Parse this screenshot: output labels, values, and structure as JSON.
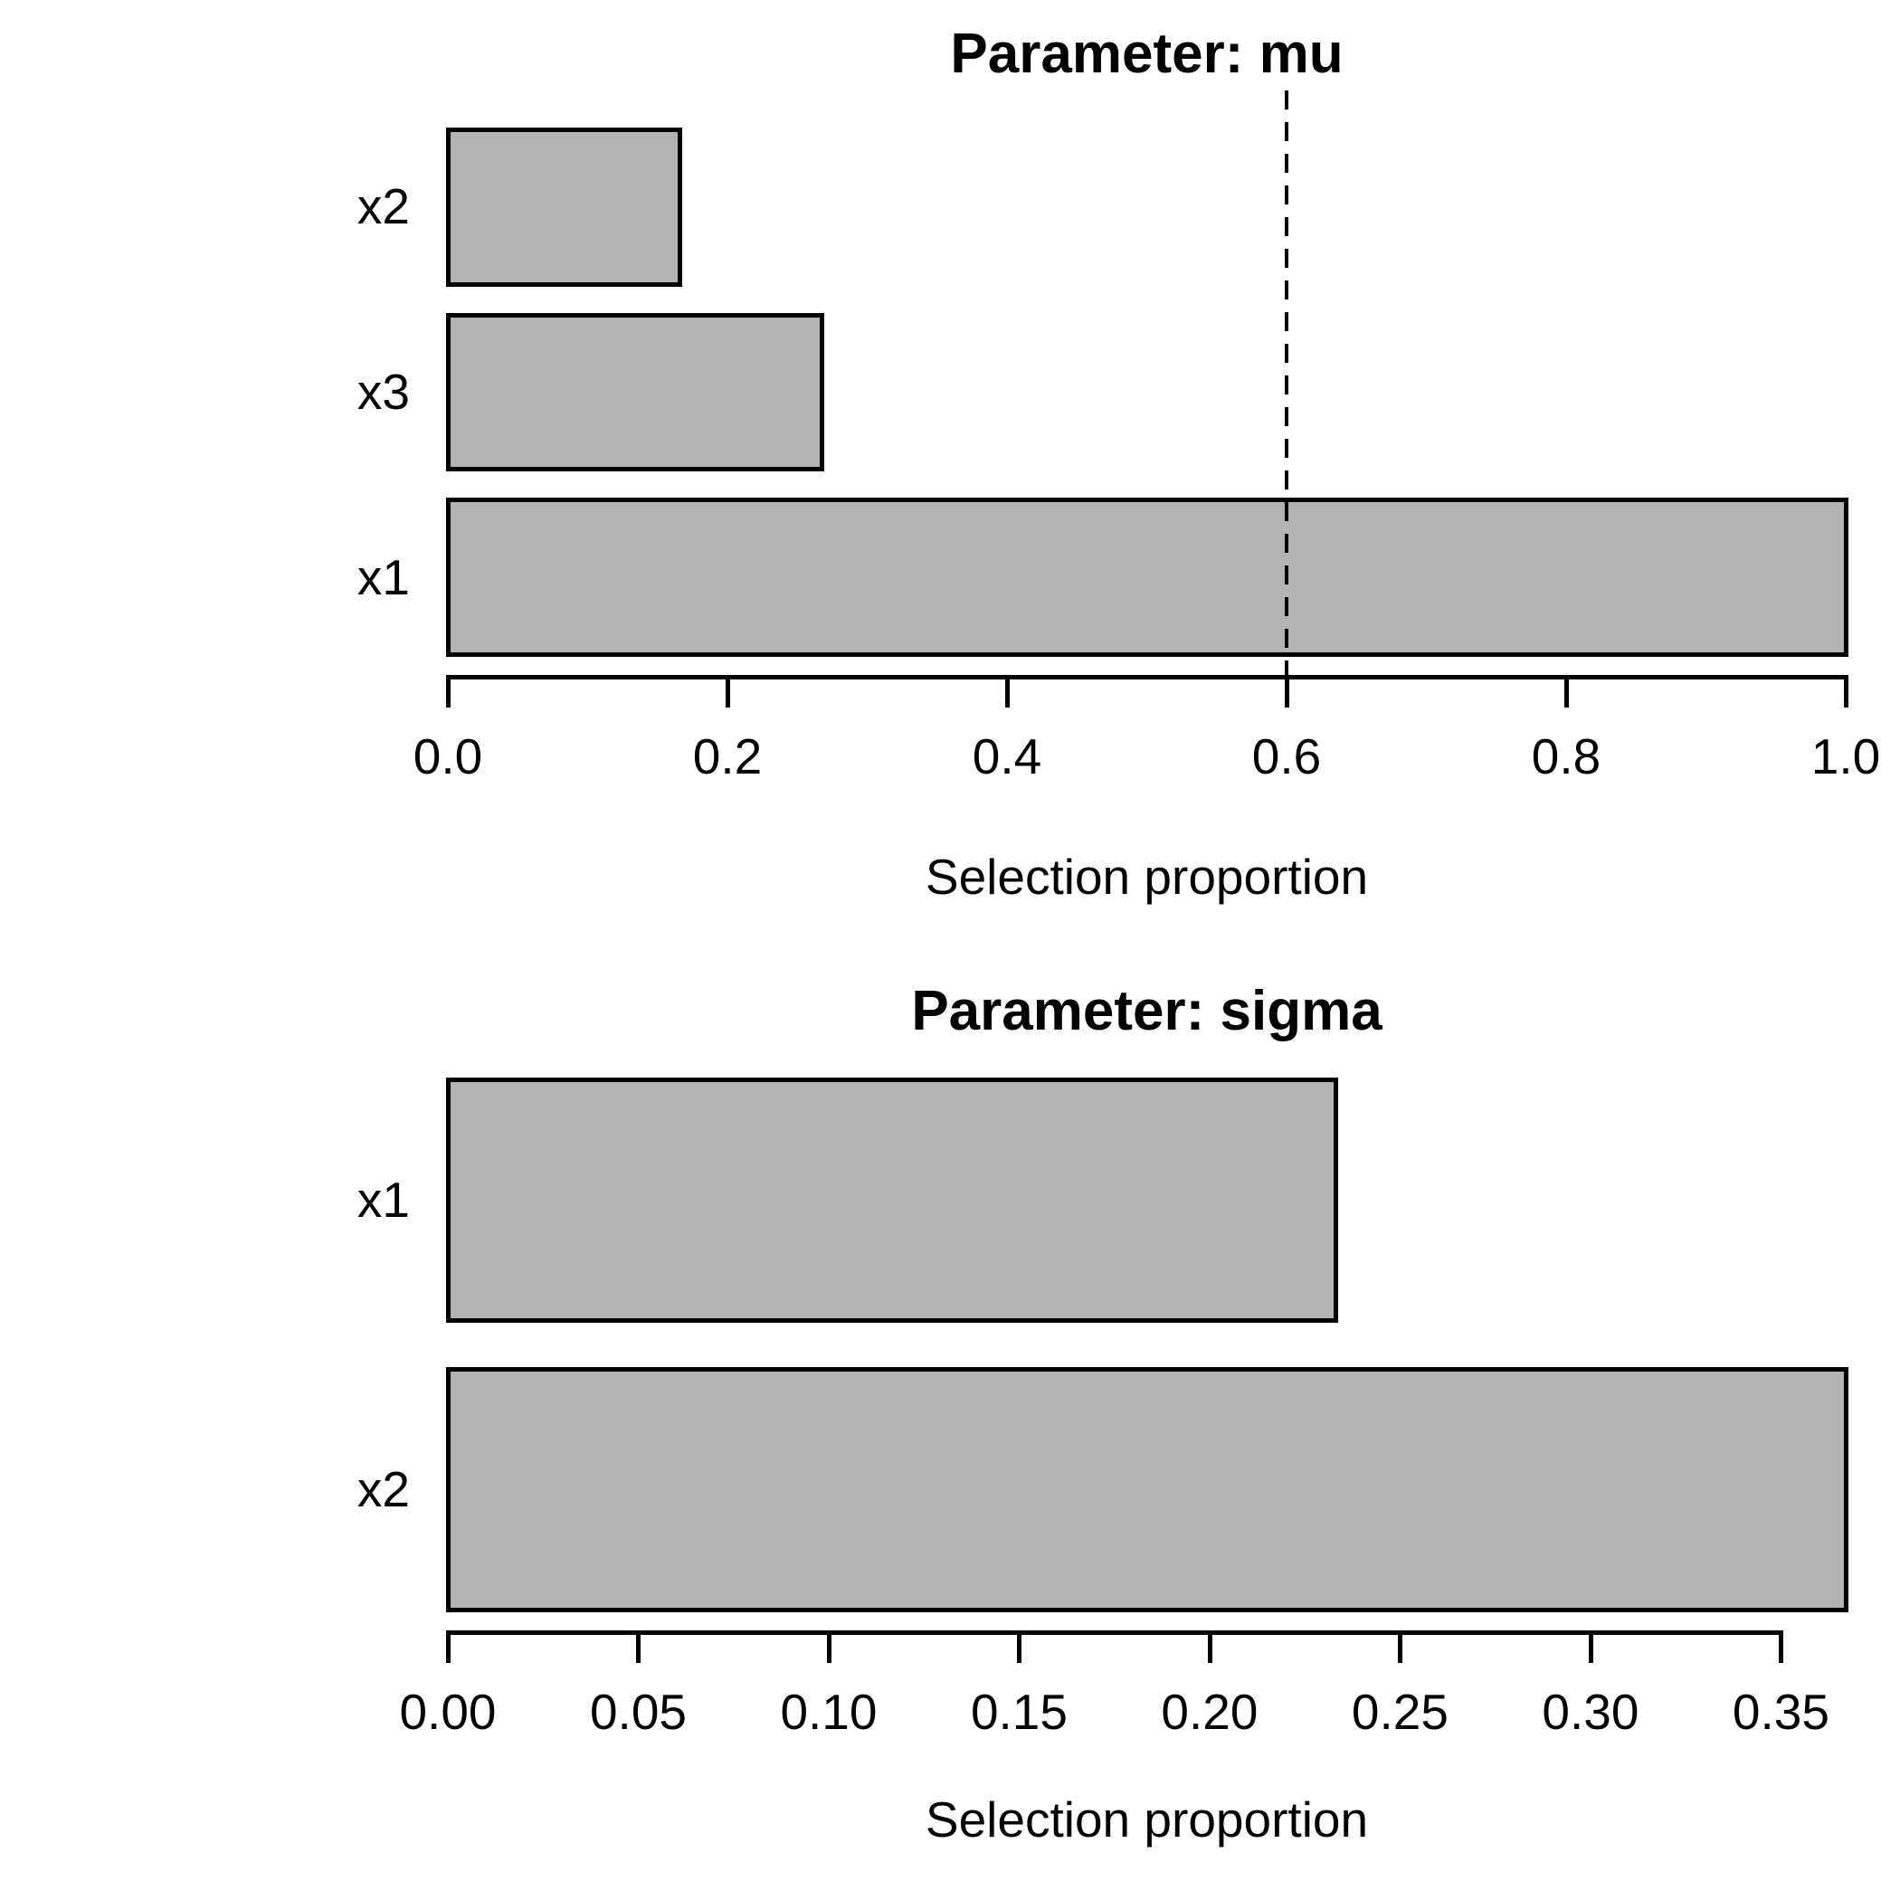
{
  "figure": {
    "background_color": "#ffffff",
    "text_color": "#000000",
    "bar_fill_color": "#b3b3b3",
    "bar_border_color": "#000000",
    "threshold_line_color": "#000000"
  },
  "chart_data": [
    {
      "type": "bar",
      "orientation": "horizontal",
      "title": "Parameter: mu",
      "xlabel": "Selection proportion",
      "categories": [
        "x2",
        "x3",
        "x1"
      ],
      "values": [
        0.166,
        0.267,
        1.0
      ],
      "xticks": [
        0.0,
        0.2,
        0.4,
        0.6,
        0.8,
        1.0
      ],
      "xtick_labels": [
        "0.0",
        "0.2",
        "0.4",
        "0.6",
        "0.8",
        "1.0"
      ],
      "xlim": [
        0,
        1.0
      ],
      "threshold": {
        "value": 0.6,
        "line_style": "dashed"
      },
      "grid": false,
      "legend": false,
      "bar_fill": "#b3b3b3",
      "bar_border": "#000000"
    },
    {
      "type": "bar",
      "orientation": "horizontal",
      "title": "Parameter: sigma",
      "xlabel": "Selection proportion",
      "categories": [
        "x1",
        "x2"
      ],
      "values": [
        0.233,
        0.367
      ],
      "xticks": [
        0.0,
        0.05,
        0.1,
        0.15,
        0.2,
        0.25,
        0.3,
        0.35
      ],
      "xtick_labels": [
        "0.00",
        "0.05",
        "0.10",
        "0.15",
        "0.20",
        "0.25",
        "0.30",
        "0.35"
      ],
      "xlim": [
        0,
        0.367
      ],
      "threshold": null,
      "grid": false,
      "legend": false,
      "bar_fill": "#b3b3b3",
      "bar_border": "#000000"
    }
  ]
}
